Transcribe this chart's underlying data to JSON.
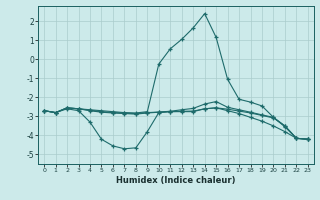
{
  "xlabel": "Humidex (Indice chaleur)",
  "background_color": "#cceaea",
  "grid_color": "#aacccc",
  "line_color": "#1e6b6b",
  "xlim": [
    -0.5,
    23.5
  ],
  "ylim": [
    -5.5,
    2.8
  ],
  "xticks": [
    0,
    1,
    2,
    3,
    4,
    5,
    6,
    7,
    8,
    9,
    10,
    11,
    12,
    13,
    14,
    15,
    16,
    17,
    18,
    19,
    20,
    21,
    22,
    23
  ],
  "yticks": [
    -5,
    -4,
    -3,
    -2,
    -1,
    0,
    1,
    2
  ],
  "line1_x": [
    0,
    1,
    2,
    3,
    4,
    5,
    6,
    7,
    8,
    9,
    10,
    11,
    12,
    13,
    14,
    15,
    16,
    17,
    18,
    19,
    20,
    21,
    22,
    23
  ],
  "line1_y": [
    -2.7,
    -2.8,
    -2.6,
    -2.7,
    -3.3,
    -4.2,
    -4.55,
    -4.7,
    -4.65,
    -3.8,
    -2.8,
    -2.75,
    -2.75,
    -2.75,
    -2.6,
    -2.55,
    -2.7,
    -2.85,
    -3.05,
    -3.25,
    -3.5,
    -3.8,
    -4.15,
    -4.2
  ],
  "line2_x": [
    0,
    1,
    2,
    3,
    4,
    5,
    6,
    7,
    8,
    9,
    10,
    11,
    12,
    13,
    14,
    15,
    16,
    17,
    18,
    19,
    20,
    21,
    22,
    23
  ],
  "line2_y": [
    -2.7,
    -2.8,
    -2.55,
    -2.6,
    -2.7,
    -2.78,
    -2.82,
    -2.85,
    -2.88,
    -2.82,
    -2.78,
    -2.75,
    -2.73,
    -2.72,
    -2.6,
    -2.55,
    -2.62,
    -2.72,
    -2.82,
    -2.95,
    -3.08,
    -3.5,
    -4.15,
    -4.2
  ],
  "line3_x": [
    0,
    1,
    2,
    3,
    4,
    5,
    6,
    7,
    8,
    9,
    10,
    11,
    12,
    13,
    14,
    15,
    16,
    17,
    18,
    19,
    20,
    21,
    22,
    23
  ],
  "line3_y": [
    -2.7,
    -2.8,
    -2.55,
    -2.6,
    -2.68,
    -2.75,
    -2.8,
    -2.82,
    -2.85,
    -2.8,
    -2.77,
    -2.73,
    -2.65,
    -2.58,
    -2.35,
    -2.22,
    -2.52,
    -2.65,
    -2.78,
    -2.92,
    -3.05,
    -3.5,
    -4.15,
    -4.2
  ],
  "line4_x": [
    0,
    1,
    2,
    3,
    4,
    5,
    6,
    7,
    8,
    9,
    10,
    11,
    12,
    13,
    14,
    15,
    16,
    17,
    18,
    19,
    20,
    21,
    22,
    23
  ],
  "line4_y": [
    -2.7,
    -2.8,
    -2.55,
    -2.6,
    -2.65,
    -2.7,
    -2.75,
    -2.8,
    -2.82,
    -2.75,
    -0.25,
    0.55,
    1.05,
    1.65,
    2.4,
    1.15,
    -1.05,
    -2.1,
    -2.25,
    -2.45,
    -3.05,
    -3.55,
    -4.15,
    -4.2
  ]
}
